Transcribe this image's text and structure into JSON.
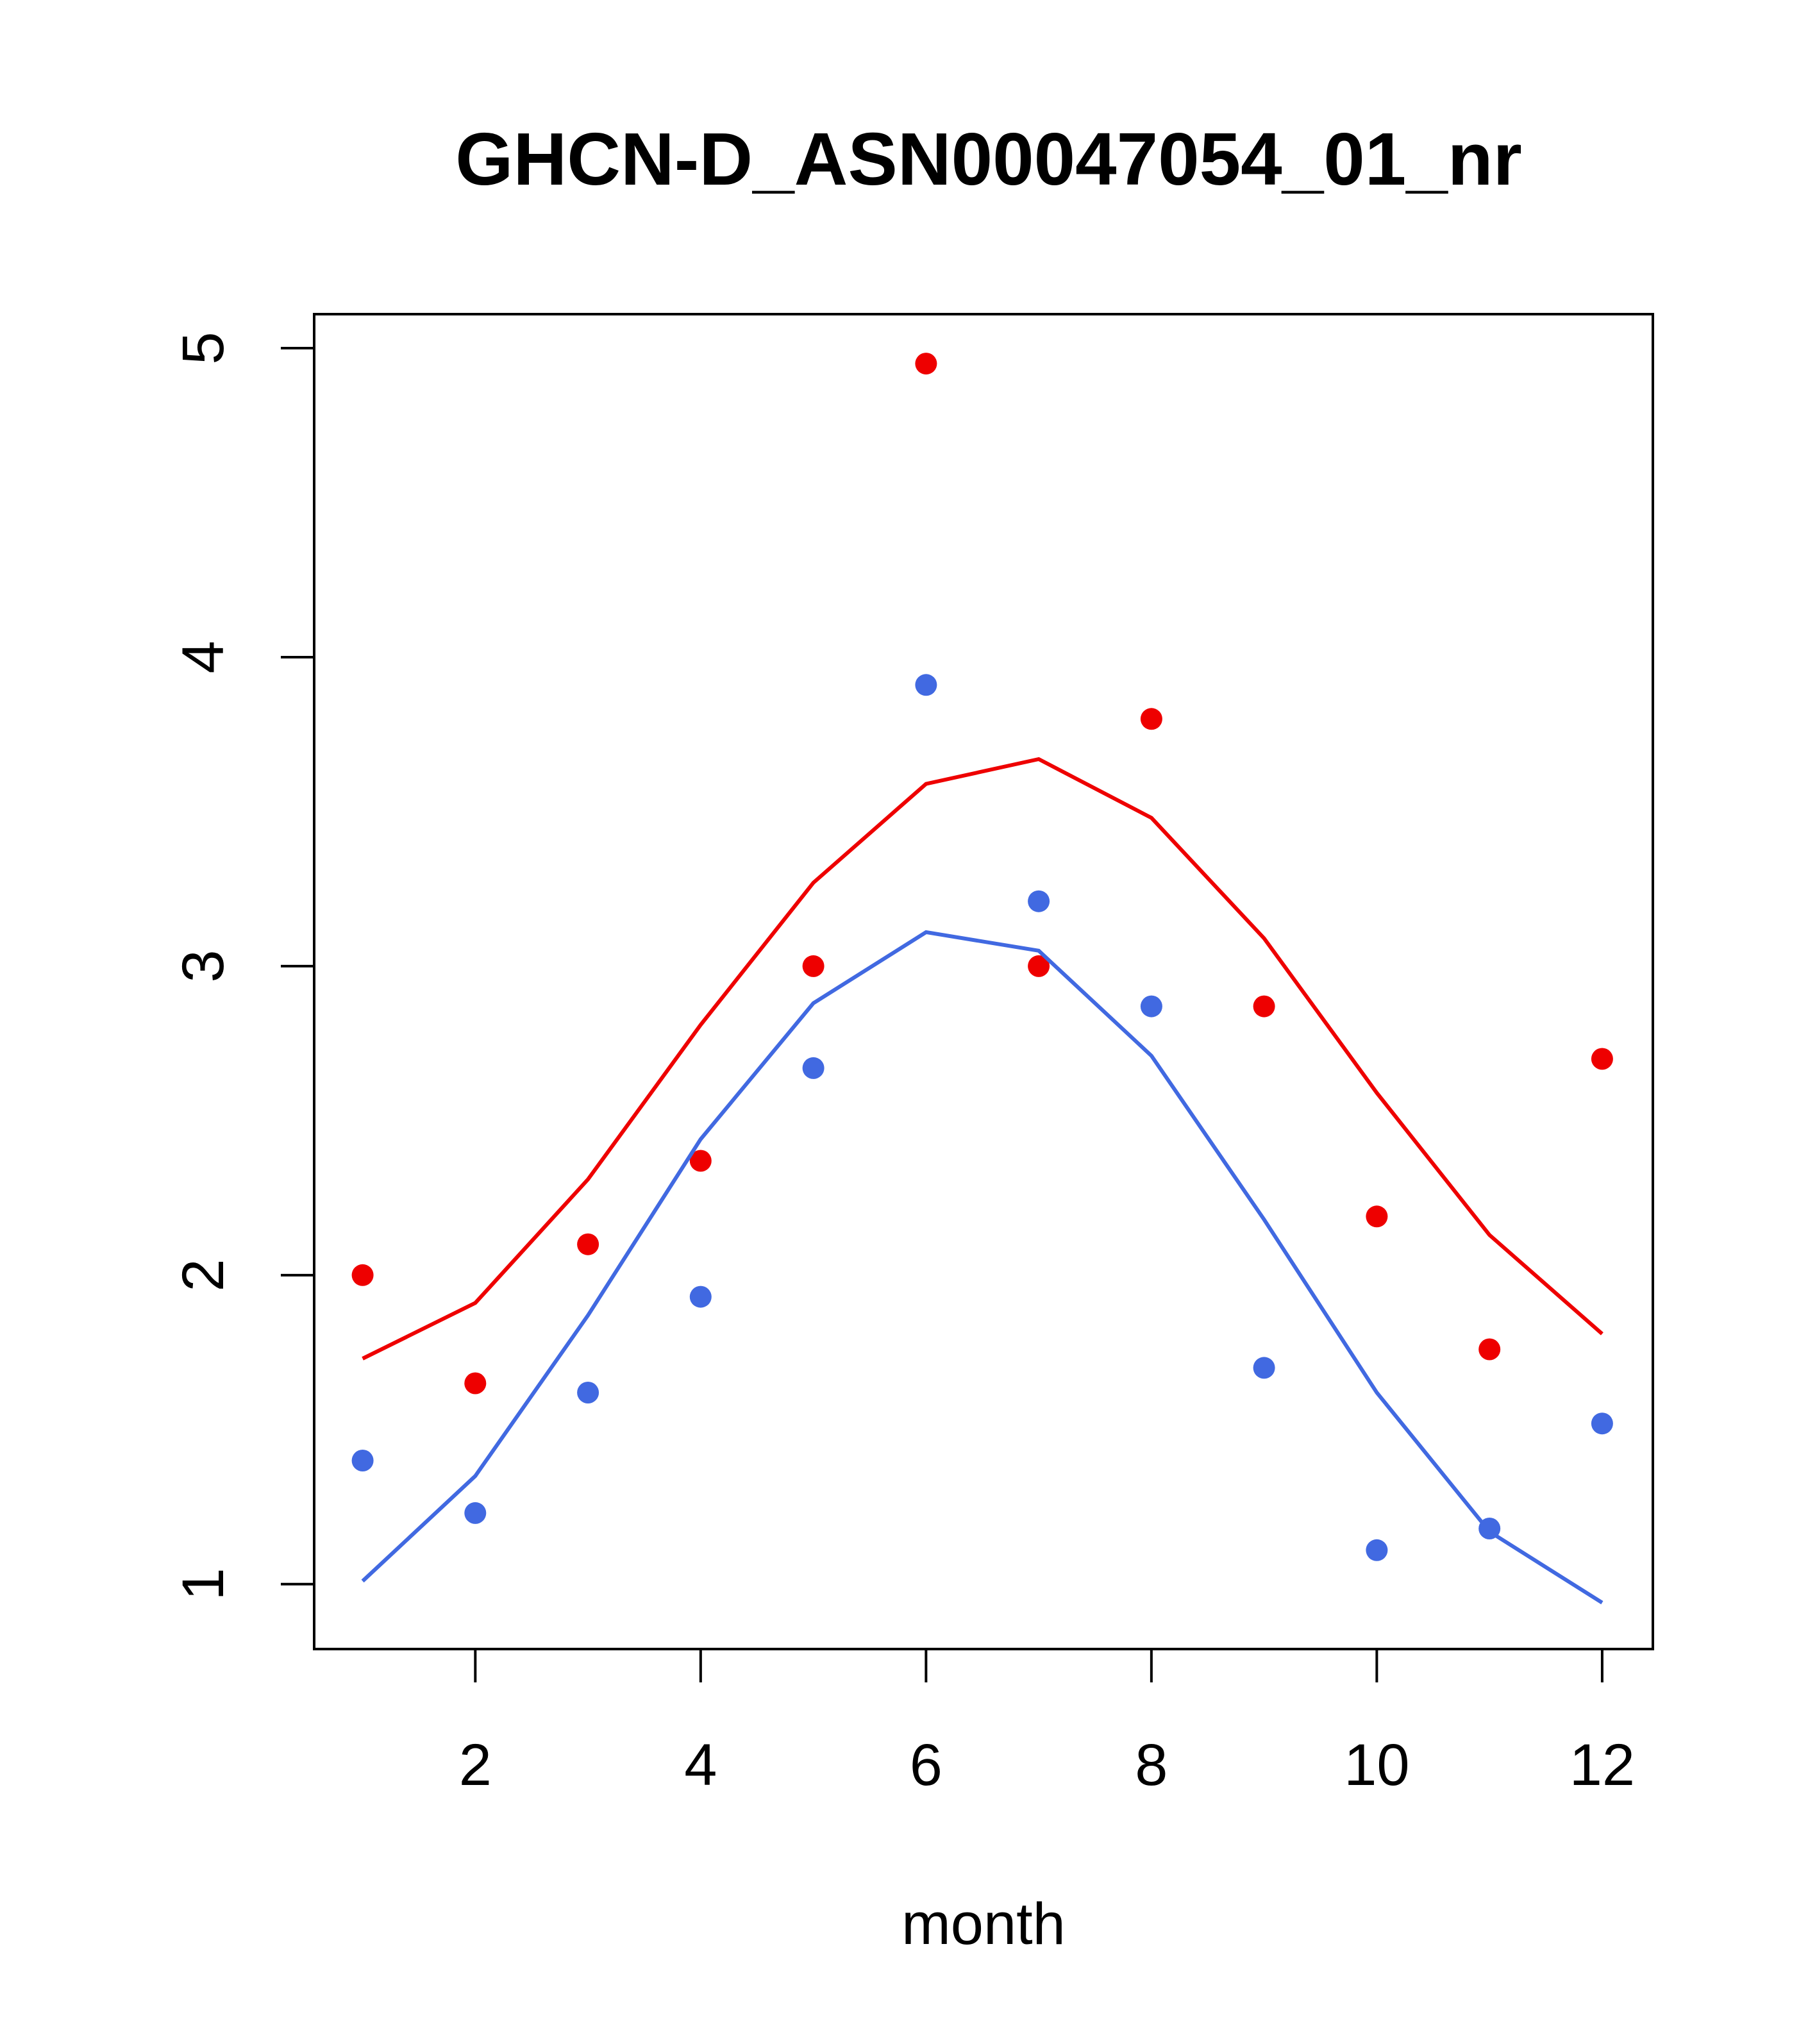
{
  "chart_data": {
    "type": "scatter",
    "title": "GHCN-D_ASN00047054_01_nr",
    "xlabel": "month",
    "ylabel": "",
    "xlim": [
      0.57,
      12.45
    ],
    "ylim": [
      0.79,
      5.11
    ],
    "x_ticks": [
      2,
      4,
      6,
      8,
      10,
      12
    ],
    "y_ticks": [
      1,
      2,
      3,
      4,
      5
    ],
    "grid": false,
    "legend": "none",
    "x": [
      1,
      2,
      3,
      4,
      5,
      6,
      7,
      8,
      9,
      10,
      11,
      12
    ],
    "series": [
      {
        "color": "#ee0000",
        "points": [
          2.0,
          1.65,
          2.1,
          2.37,
          3.0,
          4.95,
          3.0,
          3.8,
          2.87,
          2.19,
          1.76,
          2.7
        ],
        "line": [
          1.73,
          1.91,
          2.31,
          2.81,
          3.27,
          3.59,
          3.67,
          3.48,
          3.09,
          2.59,
          2.13,
          1.81
        ]
      },
      {
        "color": "#4169e1",
        "points": [
          1.4,
          1.23,
          1.62,
          1.93,
          2.67,
          3.91,
          3.21,
          2.87,
          1.7,
          1.11,
          1.18,
          1.52
        ],
        "line": [
          1.01,
          1.35,
          1.87,
          2.44,
          2.88,
          3.11,
          3.05,
          2.71,
          2.18,
          1.62,
          1.17,
          0.94
        ]
      }
    ]
  }
}
